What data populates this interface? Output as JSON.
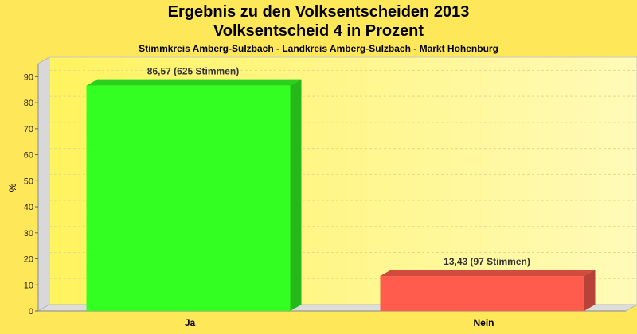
{
  "titles": {
    "main": "Ergebnis zu den Volksentscheiden 2013",
    "sub": "Volksentscheid 4 in Prozent",
    "region": "Stimmkreis Amberg-Sulzbach - Landkreis Amberg-Sulzbach - Markt Hohenburg"
  },
  "chart_data": {
    "type": "bar",
    "title": "Ergebnis zu den Volksentscheiden 2013",
    "subtitle": "Volksentscheid 4 in Prozent",
    "xlabel": "",
    "ylabel": "%",
    "ylim": [
      0,
      95
    ],
    "yticks": [
      "0",
      "10",
      "20",
      "30",
      "40",
      "50",
      "60",
      "70",
      "80",
      "90"
    ],
    "categories": [
      "Ja",
      "Nein"
    ],
    "values": [
      86.57,
      13.43
    ],
    "data_labels": [
      "86,57 (625 Stimmen)",
      "13,43 (97 Stimmen)"
    ],
    "colors": [
      "#33ff22",
      "#ff5c4d"
    ],
    "grid": true,
    "legend": "none"
  }
}
